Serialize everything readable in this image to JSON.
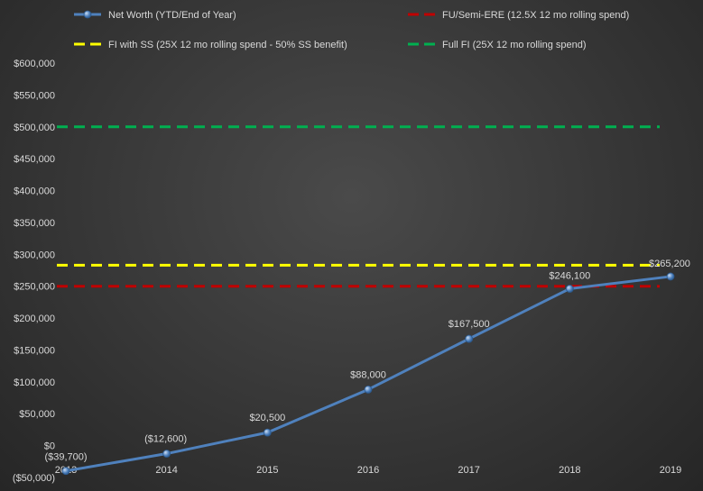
{
  "chart_data": {
    "type": "line",
    "title": "",
    "xlabel": "",
    "ylabel": "",
    "ylim": [
      -50000,
      600000
    ],
    "y_ticks": [
      "($50,000)",
      "$0",
      "$50,000",
      "$100,000",
      "$150,000",
      "$200,000",
      "$250,000",
      "$300,000",
      "$350,000",
      "$400,000",
      "$450,000",
      "$500,000",
      "$550,000",
      "$600,000"
    ],
    "categories": [
      "2013",
      "2014",
      "2015",
      "2016",
      "2017",
      "2018",
      "2019"
    ],
    "grid": false,
    "legend_position": "top",
    "series": [
      {
        "name": "Net Worth (YTD/End of Year)",
        "kind": "line-markers",
        "color": "#4f81bd",
        "values": [
          -39700,
          -12600,
          20500,
          88000,
          167500,
          246100,
          265200
        ],
        "data_labels": [
          "($39,700)",
          "($12,600)",
          "$20,500",
          "$88,000",
          "$167,500",
          "$246,100",
          "$265,200"
        ]
      },
      {
        "name": "FU/Semi-ERE (12.5X 12 mo rolling spend)",
        "kind": "dashed",
        "color": "#c00000",
        "values": [
          250000,
          250000,
          250000,
          250000,
          250000,
          250000,
          250000
        ]
      },
      {
        "name": "FI with SS  (25X 12 mo rolling spend - 50% SS benefit)",
        "kind": "dashed",
        "color": "#ffff00",
        "values": [
          283000,
          283000,
          283000,
          283000,
          283000,
          283000,
          283000
        ]
      },
      {
        "name": "Full FI  (25X 12 mo rolling spend)",
        "kind": "dashed",
        "color": "#00b050",
        "values": [
          500000,
          500000,
          500000,
          500000,
          500000,
          500000,
          500000
        ]
      }
    ]
  }
}
